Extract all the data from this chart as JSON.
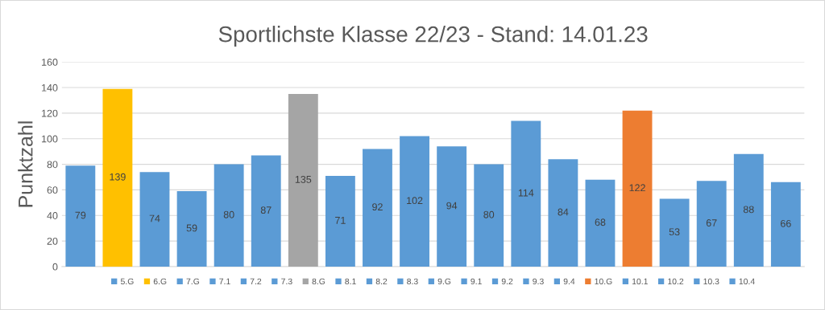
{
  "chart_data": {
    "type": "bar",
    "title": "Sportlichste Klasse 22/23 - Stand: 14.01.23",
    "ylabel": "Punktzahl",
    "stacked": true,
    "categories": [
      null,
      null,
      null,
      null,
      null,
      null,
      null,
      null,
      null,
      null,
      null,
      null,
      null,
      null,
      null,
      null,
      null,
      null,
      null,
      null
    ],
    "series": [
      {
        "name": "5.G",
        "color": "#5b9bd5",
        "values": [
          79,
          null,
          null,
          null,
          null,
          null,
          null,
          null,
          null,
          null,
          null,
          null,
          null,
          null,
          null,
          null,
          null,
          null,
          null,
          null
        ]
      },
      {
        "name": "6.G",
        "color": "#ffc000",
        "values": [
          null,
          139,
          null,
          null,
          null,
          null,
          null,
          null,
          null,
          null,
          null,
          null,
          null,
          null,
          null,
          null,
          null,
          null,
          null,
          null
        ]
      },
      {
        "name": "7.G",
        "color": "#5b9bd5",
        "values": [
          null,
          null,
          74,
          null,
          null,
          null,
          null,
          null,
          null,
          null,
          null,
          null,
          null,
          null,
          null,
          null,
          null,
          null,
          null,
          null
        ]
      },
      {
        "name": "7.1",
        "color": "#5b9bd5",
        "values": [
          null,
          null,
          null,
          59,
          null,
          null,
          null,
          null,
          null,
          null,
          null,
          null,
          null,
          null,
          null,
          null,
          null,
          null,
          null,
          null
        ]
      },
      {
        "name": "7.2",
        "color": "#5b9bd5",
        "values": [
          null,
          null,
          null,
          null,
          80,
          null,
          null,
          null,
          null,
          null,
          null,
          null,
          null,
          null,
          null,
          null,
          null,
          null,
          null,
          null
        ]
      },
      {
        "name": "7.3",
        "color": "#5b9bd5",
        "values": [
          null,
          null,
          null,
          null,
          null,
          87,
          null,
          null,
          null,
          null,
          null,
          null,
          null,
          null,
          null,
          null,
          null,
          null,
          null,
          null
        ]
      },
      {
        "name": "8.G",
        "color": "#a5a5a5",
        "values": [
          null,
          null,
          null,
          null,
          null,
          null,
          135,
          null,
          null,
          null,
          null,
          null,
          null,
          null,
          null,
          null,
          null,
          null,
          null,
          null
        ]
      },
      {
        "name": "8.1",
        "color": "#5b9bd5",
        "values": [
          null,
          null,
          null,
          null,
          null,
          null,
          null,
          71,
          null,
          null,
          null,
          null,
          null,
          null,
          null,
          null,
          null,
          null,
          null,
          null
        ]
      },
      {
        "name": "8.2",
        "color": "#5b9bd5",
        "values": [
          null,
          null,
          null,
          null,
          null,
          null,
          null,
          null,
          92,
          null,
          null,
          null,
          null,
          null,
          null,
          null,
          null,
          null,
          null,
          null
        ]
      },
      {
        "name": "8.3",
        "color": "#5b9bd5",
        "values": [
          null,
          null,
          null,
          null,
          null,
          null,
          null,
          null,
          null,
          102,
          null,
          null,
          null,
          null,
          null,
          null,
          null,
          null,
          null,
          null
        ]
      },
      {
        "name": "9.G",
        "color": "#5b9bd5",
        "values": [
          null,
          null,
          null,
          null,
          null,
          null,
          null,
          null,
          null,
          null,
          94,
          null,
          null,
          null,
          null,
          null,
          null,
          null,
          null,
          null
        ]
      },
      {
        "name": "9.1",
        "color": "#5b9bd5",
        "values": [
          null,
          null,
          null,
          null,
          null,
          null,
          null,
          null,
          null,
          null,
          null,
          80,
          null,
          null,
          null,
          null,
          null,
          null,
          null,
          null
        ]
      },
      {
        "name": "9.2",
        "color": "#5b9bd5",
        "values": [
          null,
          null,
          null,
          null,
          null,
          null,
          null,
          null,
          null,
          null,
          null,
          null,
          114,
          null,
          null,
          null,
          null,
          null,
          null,
          null
        ]
      },
      {
        "name": "9.3",
        "color": "#5b9bd5",
        "values": [
          null,
          null,
          null,
          null,
          null,
          null,
          null,
          null,
          null,
          null,
          null,
          null,
          null,
          84,
          null,
          null,
          null,
          null,
          null,
          null
        ]
      },
      {
        "name": "9.4",
        "color": "#5b9bd5",
        "values": [
          null,
          null,
          null,
          null,
          null,
          null,
          null,
          null,
          null,
          null,
          null,
          null,
          null,
          null,
          68,
          null,
          null,
          null,
          null,
          null
        ]
      },
      {
        "name": "10.G",
        "color": "#ed7d31",
        "values": [
          null,
          null,
          null,
          null,
          null,
          null,
          null,
          null,
          null,
          null,
          null,
          null,
          null,
          null,
          null,
          122,
          null,
          null,
          null,
          null
        ]
      },
      {
        "name": "10.1",
        "color": "#5b9bd5",
        "values": [
          null,
          null,
          null,
          null,
          null,
          null,
          null,
          null,
          null,
          null,
          null,
          null,
          null,
          null,
          null,
          null,
          53,
          null,
          null,
          null
        ]
      },
      {
        "name": "10.2",
        "color": "#5b9bd5",
        "values": [
          null,
          null,
          null,
          null,
          null,
          null,
          null,
          null,
          null,
          null,
          null,
          null,
          null,
          null,
          null,
          null,
          null,
          67,
          null,
          null
        ]
      },
      {
        "name": "10.3",
        "color": "#5b9bd5",
        "values": [
          null,
          null,
          null,
          null,
          null,
          null,
          null,
          null,
          null,
          null,
          null,
          null,
          null,
          null,
          null,
          null,
          null,
          null,
          88,
          null
        ]
      },
      {
        "name": "10.4",
        "color": "#5b9bd5",
        "values": [
          null,
          null,
          null,
          null,
          null,
          null,
          null,
          null,
          null,
          null,
          null,
          null,
          null,
          null,
          null,
          null,
          null,
          null,
          null,
          66
        ]
      }
    ],
    "ylim": [
      0,
      160
    ],
    "yticks": [
      0,
      20,
      40,
      60,
      80,
      100,
      120,
      140,
      160
    ],
    "grid": "y",
    "data_labels": true,
    "legend": "bottom",
    "tick_labels": "y"
  }
}
